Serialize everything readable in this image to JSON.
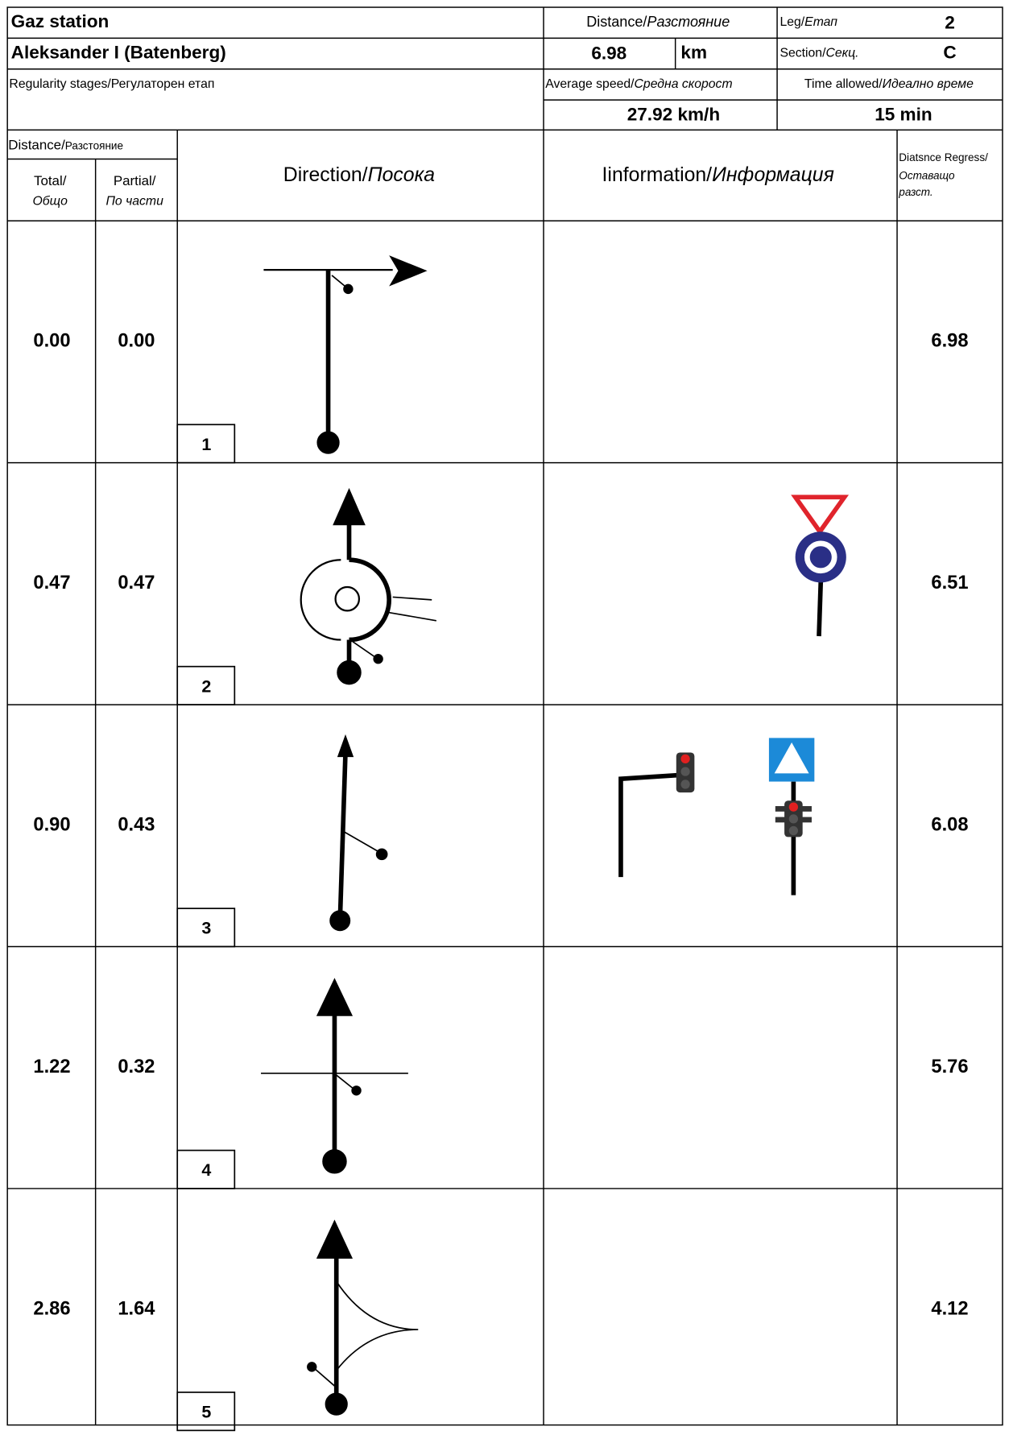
{
  "header": {
    "title": "Gaz station",
    "name": "Aleksander I (Batenberg)",
    "stage": "Regularity stages/Регулаторен етап",
    "distance_label": {
      "text": "Distance/",
      "italic": "Разстояние"
    },
    "distance": "6.98",
    "distance_unit": "km",
    "leg_label": {
      "text": "Leg/",
      "italic": "Етап"
    },
    "leg": "2",
    "section_label": {
      "text": "Section/",
      "italic": "Секц."
    },
    "section": "C",
    "speed_label": {
      "text": "Average speed/",
      "italic": "Средна скорост"
    },
    "speed": "27.92 km/h",
    "time_label": {
      "text": "Time allowed/",
      "italic": "Идеално време"
    },
    "time": "15 min"
  },
  "columns": {
    "distance": {
      "text": "Distance/",
      "small": "Разстояние"
    },
    "total": {
      "text": "Total/",
      "italic": "Общо"
    },
    "partial": {
      "text": "Partial/",
      "italic": "По части"
    },
    "direction": {
      "text": "Direction/",
      "italic": "Посока"
    },
    "information": {
      "text": "Iinformation/",
      "italic": "Информация"
    },
    "remaining": {
      "text": "Diatsnce Regress/",
      "italic": [
        "Оставащо",
        "разст."
      ]
    }
  },
  "rows": [
    {
      "total": "0.00",
      "partial": "0.00",
      "step": "1",
      "remaining": "6.98"
    },
    {
      "total": "0.47",
      "partial": "0.47",
      "step": "2",
      "remaining": "6.51"
    },
    {
      "total": "0.90",
      "partial": "0.43",
      "step": "3",
      "remaining": "6.08"
    },
    {
      "total": "1.22",
      "partial": "0.32",
      "step": "4",
      "remaining": "5.76"
    },
    {
      "total": "2.86",
      "partial": "1.64",
      "step": "5",
      "remaining": "4.12"
    }
  ]
}
